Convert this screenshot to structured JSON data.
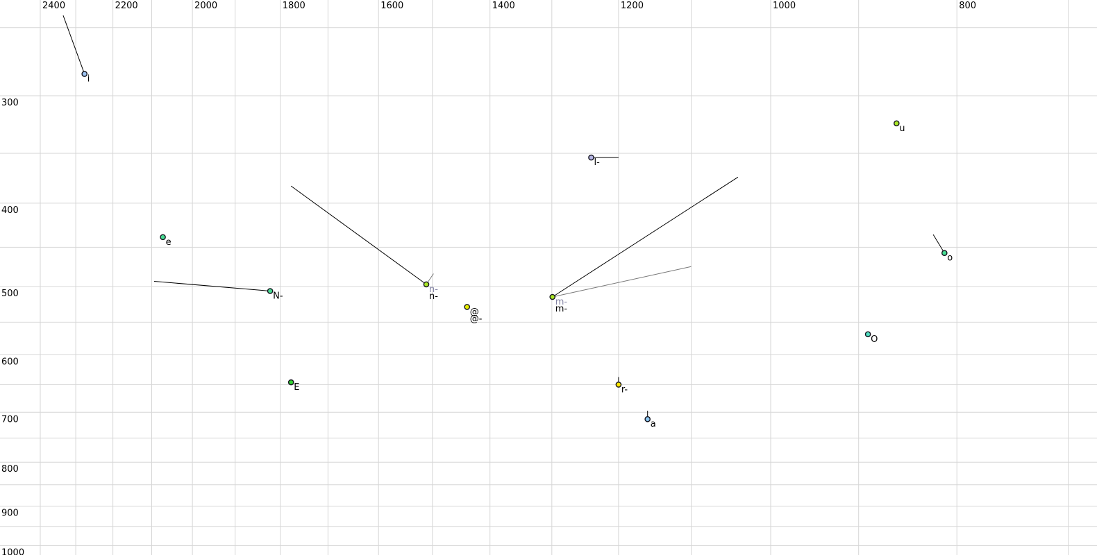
{
  "chart_data": {
    "type": "scatter",
    "title": "",
    "description": "Vowel formant chart: F2 (Hz) on horizontal axis, reversed, log scale; F1 (Hz) on vertical axis, increasing downward, log scale. Tokens drawn as filled circles with text labels and straight movement tails.",
    "x_axis": {
      "unit": "Hz",
      "scale": "log",
      "reversed": true,
      "labeled_ticks": [
        2400,
        2200,
        2000,
        1800,
        1600,
        1400,
        1200,
        1000,
        800
      ],
      "gridline_ticks": [
        2400,
        2300,
        2200,
        2100,
        2000,
        1900,
        1800,
        1700,
        1600,
        1500,
        1400,
        1300,
        1200,
        1100,
        1000,
        900,
        800,
        700
      ],
      "visible_range": [
        2520,
        685
      ]
    },
    "y_axis": {
      "unit": "Hz",
      "scale": "log",
      "direction": "down",
      "labeled_ticks": [
        300,
        400,
        500,
        600,
        700,
        800,
        900,
        1000
      ],
      "gridline_ticks": [
        250,
        300,
        350,
        400,
        450,
        500,
        550,
        600,
        650,
        700,
        750,
        800,
        850,
        900,
        950,
        1000
      ],
      "visible_range": [
        233,
        1027
      ]
    },
    "points": [
      {
        "name": "i",
        "f2": 2276,
        "f1": 283,
        "fill": "#9dc3f0",
        "labels": [
          {
            "text": "i",
            "color": "#000000"
          }
        ],
        "tails": [
          {
            "f2": 2335,
            "f1": 242,
            "color": "#000000"
          }
        ]
      },
      {
        "name": "e",
        "f2": 2072,
        "f1": 438,
        "fill": "#46dc92",
        "labels": [
          {
            "text": "e",
            "color": "#000000"
          }
        ],
        "tails": []
      },
      {
        "name": "N-",
        "f2": 1822,
        "f1": 506,
        "fill": "#46dc92",
        "labels": [
          {
            "text": "N-",
            "color": "#000000"
          }
        ],
        "tails": [
          {
            "f2": 2094,
            "f1": 493,
            "color": "#000000"
          }
        ]
      },
      {
        "name": "E",
        "f2": 1777,
        "f1": 646,
        "fill": "#32d232",
        "labels": [
          {
            "text": "E",
            "color": "#000000"
          }
        ],
        "tails": []
      },
      {
        "name": "n-",
        "f2": 1511,
        "f1": 497,
        "fill": "#a9e626",
        "labels": [
          {
            "text": "n-",
            "color": "#8585a5"
          },
          {
            "text": "n-",
            "color": "#000000"
          }
        ],
        "tails": [
          {
            "f2": 1498,
            "f1": 483,
            "color": "#787878"
          },
          {
            "f2": 1777,
            "f1": 382,
            "color": "#000000"
          }
        ]
      },
      {
        "name": "@",
        "f2": 1439,
        "f1": 528,
        "fill": "#e8ee00",
        "labels": [
          {
            "text": "@",
            "color": "#000000"
          },
          {
            "text": "@-",
            "color": "#000000"
          }
        ],
        "tails": []
      },
      {
        "name": "m-",
        "f2": 1299,
        "f1": 514,
        "fill": "#a9e626",
        "labels": [
          {
            "text": "m-",
            "color": "#8585a5"
          },
          {
            "text": "m-",
            "color": "#000000"
          }
        ],
        "tails": [
          {
            "f2": 1100,
            "f1": 474,
            "color": "#787878"
          },
          {
            "f2": 1040,
            "f1": 373,
            "color": "#000000"
          }
        ]
      },
      {
        "name": "l-",
        "f2": 1240,
        "f1": 354,
        "fill": "#b5b5e5",
        "labels": [
          {
            "text": "l-",
            "color": "#000000"
          }
        ],
        "tails": [
          {
            "f2": 1200,
            "f1": 354,
            "color": "#000000"
          }
        ]
      },
      {
        "name": "r-",
        "f2": 1200,
        "f1": 650,
        "fill": "#ffe800",
        "labels": [
          {
            "text": "r-",
            "color": "#000000"
          }
        ],
        "tails": [
          {
            "f2": 1200,
            "f1": 637,
            "color": "#000000"
          }
        ]
      },
      {
        "name": "a",
        "f2": 1159,
        "f1": 713,
        "fill": "#8cc6f0",
        "labels": [
          {
            "text": "a",
            "color": "#000000"
          }
        ],
        "tails": [
          {
            "f2": 1159,
            "f1": 697,
            "color": "#000000"
          }
        ]
      },
      {
        "name": "O",
        "f2": 890,
        "f1": 568,
        "fill": "#52e0c2",
        "labels": [
          {
            "text": "O",
            "color": "#000000"
          }
        ],
        "tails": []
      },
      {
        "name": "u",
        "f2": 860,
        "f1": 323,
        "fill": "#a9e626",
        "labels": [
          {
            "text": "u",
            "color": "#000000"
          }
        ],
        "tails": []
      },
      {
        "name": "o",
        "f2": 812,
        "f1": 457,
        "fill": "#46dc92",
        "labels": [
          {
            "text": "o",
            "color": "#000000"
          }
        ],
        "tails": [
          {
            "f2": 823,
            "f1": 435,
            "color": "#000000"
          }
        ]
      }
    ]
  },
  "colors": {
    "background": "#ffffff",
    "gridline": "#d6d6d6",
    "axis_text": "#000000",
    "point_outline": "#14141e"
  }
}
